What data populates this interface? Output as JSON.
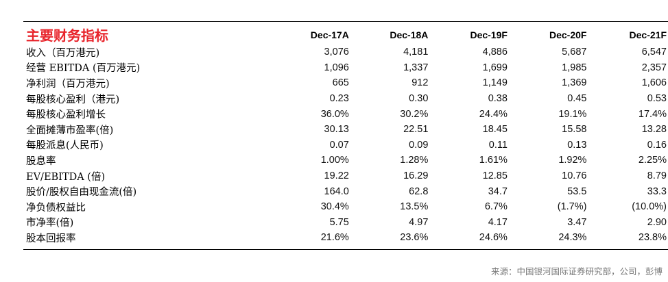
{
  "table": {
    "title": "主要财务指标",
    "columns": [
      "Dec-17A",
      "Dec-18A",
      "Dec-19F",
      "Dec-20F",
      "Dec-21F"
    ],
    "rows": [
      {
        "label": "收入（百万港元)",
        "values": [
          "3,076",
          "4,181",
          "4,886",
          "5,687",
          "6,547"
        ]
      },
      {
        "label": "经营 EBITDA (百万港元)",
        "values": [
          "1,096",
          "1,337",
          "1,699",
          "1,985",
          "2,357"
        ]
      },
      {
        "label": "净利润（百万港元)",
        "values": [
          "665",
          "912",
          "1,149",
          "1,369",
          "1,606"
        ]
      },
      {
        "label": "每股核心盈利（港元)",
        "values": [
          "0.23",
          "0.30",
          "0.38",
          "0.45",
          "0.53"
        ]
      },
      {
        "label": "每股核心盈利增长",
        "values": [
          "36.0%",
          "30.2%",
          "24.4%",
          "19.1%",
          "17.4%"
        ]
      },
      {
        "label": "全面摊薄市盈率(倍)",
        "values": [
          "30.13",
          "22.51",
          "18.45",
          "15.58",
          "13.28"
        ]
      },
      {
        "label": "每股派息(人民币)",
        "values": [
          "0.07",
          "0.09",
          "0.11",
          "0.13",
          "0.16"
        ]
      },
      {
        "label": "股息率",
        "values": [
          "1.00%",
          "1.28%",
          "1.61%",
          "1.92%",
          "2.25%"
        ]
      },
      {
        "label": "EV/EBITDA (倍)",
        "values": [
          "19.22",
          "16.29",
          "12.85",
          "10.76",
          "8.79"
        ]
      },
      {
        "label": "股价/股权自由现金流(倍)",
        "values": [
          "164.0",
          "62.8",
          "34.7",
          "53.5",
          "33.3"
        ]
      },
      {
        "label": "净负债权益比",
        "values": [
          "30.4%",
          "13.5%",
          "6.7%",
          "(1.7%)",
          "(10.0%)"
        ]
      },
      {
        "label": "市净率(倍)",
        "values": [
          "5.75",
          "4.97",
          "4.17",
          "3.47",
          "2.90"
        ]
      },
      {
        "label": "股本回报率",
        "values": [
          "21.6%",
          "23.6%",
          "24.6%",
          "24.3%",
          "23.8%"
        ]
      }
    ]
  },
  "source": "来源：中国银河国际证券研究部，公司，彭博"
}
